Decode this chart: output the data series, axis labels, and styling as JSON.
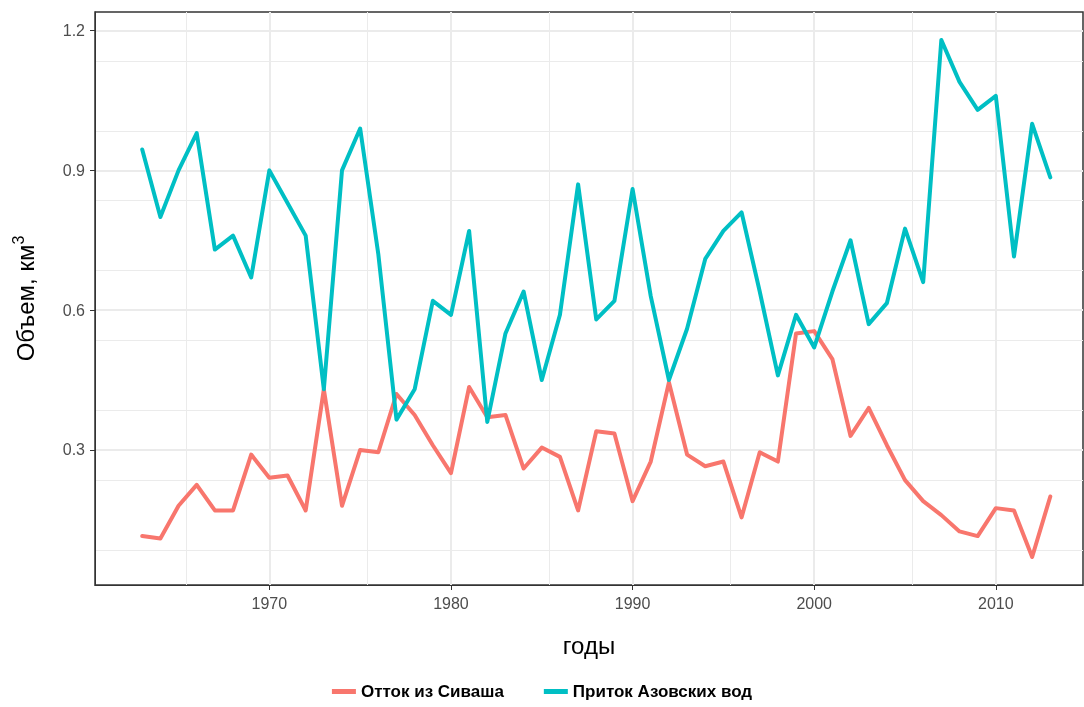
{
  "chart_data": {
    "type": "line",
    "xlabel": "годы",
    "ylabel": "Объем, км$^{3}$",
    "x": [
      1963,
      1964,
      1965,
      1966,
      1967,
      1968,
      1969,
      1970,
      1971,
      1972,
      1973,
      1974,
      1975,
      1976,
      1977,
      1978,
      1979,
      1980,
      1981,
      1982,
      1983,
      1984,
      1985,
      1986,
      1987,
      1988,
      1989,
      1990,
      1991,
      1992,
      1993,
      1994,
      1995,
      1996,
      1997,
      1998,
      1999,
      2000,
      2001,
      2002,
      2003,
      2004,
      2005,
      2006,
      2007,
      2008,
      2009,
      2010,
      2011,
      2012,
      2013
    ],
    "series": [
      {
        "name": "Отток из Сиваша",
        "color": "#f8766d",
        "values": [
          0.115,
          0.11,
          0.18,
          0.225,
          0.17,
          0.17,
          0.29,
          0.24,
          0.245,
          0.17,
          0.43,
          0.18,
          0.3,
          0.295,
          0.42,
          0.375,
          0.31,
          0.25,
          0.435,
          0.37,
          0.375,
          0.26,
          0.305,
          0.285,
          0.17,
          0.34,
          0.335,
          0.19,
          0.275,
          0.445,
          0.29,
          0.265,
          0.275,
          0.155,
          0.295,
          0.275,
          0.55,
          0.555,
          0.495,
          0.33,
          0.39,
          0.31,
          0.235,
          0.19,
          0.16,
          0.125,
          0.115,
          0.175,
          0.17,
          0.07,
          0.2
        ]
      },
      {
        "name": "Приток Азовских вод",
        "color": "#00bfc4",
        "values": [
          0.945,
          0.8,
          0.9,
          0.98,
          0.73,
          0.76,
          0.67,
          0.9,
          0.83,
          0.76,
          0.43,
          0.9,
          0.99,
          0.72,
          0.365,
          0.43,
          0.62,
          0.59,
          0.77,
          0.36,
          0.55,
          0.64,
          0.45,
          0.59,
          0.87,
          0.58,
          0.62,
          0.86,
          0.63,
          0.45,
          0.56,
          0.71,
          0.77,
          0.81,
          0.64,
          0.46,
          0.59,
          0.52,
          0.64,
          0.75,
          0.57,
          0.615,
          0.775,
          0.66,
          1.18,
          1.09,
          1.03,
          1.06,
          0.715,
          1.0,
          0.885
        ]
      }
    ],
    "xlim": [
      1960.4,
      2014.8
    ],
    "xticks": [
      1970,
      1980,
      1990,
      2000,
      2010
    ],
    "ylim": [
      0.01,
      1.24
    ],
    "yticks": [
      0.3,
      0.6,
      0.9,
      {
        "value": 1.2,
        "label": "1.2"
      }
    ],
    "grid": true,
    "legend": "bottom",
    "marker": "none",
    "line_style": "solid"
  }
}
